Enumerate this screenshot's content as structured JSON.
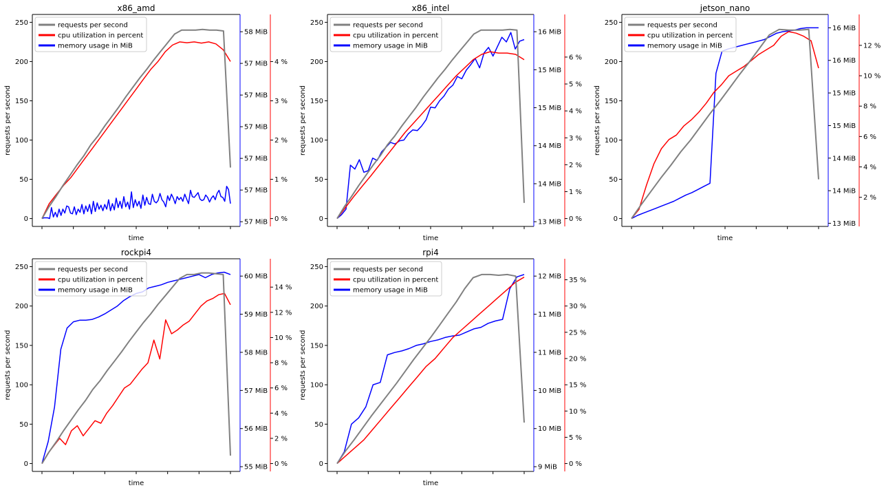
{
  "colors": {
    "requests": "#808080",
    "cpu": "#ff0000",
    "memory": "#0000ff"
  },
  "chart_data": [
    {
      "type": "line",
      "title": "x86_amd",
      "xlabel": "time",
      "ylabel": "requests per second",
      "ylim": [
        -10,
        260
      ],
      "yticks": [
        "0",
        "50",
        "100",
        "150",
        "200",
        "250"
      ],
      "mem_ticks": [
        "57 MiB",
        "57 MiB",
        "57 MiB",
        "57 MiB",
        "57 MiB",
        "57 MiB",
        "58 MiB"
      ],
      "cpu_ticks": [
        "0 %",
        "1 %",
        "2 %",
        "3 %",
        "4 %"
      ],
      "cpu_max": 4.8,
      "legend": [
        "requests per second",
        "cpu utilization in percent",
        "memory usage in MiB"
      ],
      "series": [
        {
          "name": "requests per second",
          "values": [
            0,
            15,
            28,
            42,
            55,
            68,
            80,
            94,
            105,
            118,
            130,
            142,
            155,
            167,
            179,
            190,
            202,
            213,
            224,
            235,
            240,
            240,
            240,
            241,
            240,
            240,
            239,
            65
          ]
        },
        {
          "name": "cpu utilization in percent",
          "values": [
            0,
            0.38,
            0.62,
            0.85,
            1.05,
            1.3,
            1.55,
            1.8,
            2.05,
            2.3,
            2.55,
            2.8,
            3.05,
            3.3,
            3.55,
            3.8,
            4.0,
            4.25,
            4.42,
            4.5,
            4.48,
            4.5,
            4.47,
            4.5,
            4.45,
            4.3,
            4.0
          ]
        },
        {
          "name": "memory usage in MiB",
          "values": [
            0,
            1,
            1,
            1,
            0,
            14,
            2,
            8,
            2,
            12,
            4,
            12,
            7,
            16,
            15,
            7,
            6,
            15,
            5,
            12,
            8,
            18,
            6,
            16,
            9,
            18,
            6,
            22,
            9,
            20,
            12,
            17,
            10,
            18,
            12,
            24,
            10,
            19,
            11,
            26,
            14,
            22,
            13,
            28,
            15,
            21,
            12,
            34,
            14,
            24,
            16,
            22,
            13,
            30,
            17,
            27,
            19,
            18,
            31,
            22,
            20,
            23,
            32,
            24,
            21,
            15,
            29,
            23,
            31,
            26,
            19,
            28,
            24,
            27,
            22,
            31,
            25,
            19,
            36,
            28,
            27,
            30,
            33,
            25,
            23,
            24,
            30,
            27,
            21,
            26,
            29,
            24,
            32,
            36,
            28,
            27,
            22,
            41,
            37,
            19
          ]
        }
      ]
    },
    {
      "type": "line",
      "title": "x86_intel",
      "xlabel": "time",
      "ylabel": "requests per second",
      "ylim": [
        -10,
        260
      ],
      "yticks": [
        "0",
        "50",
        "100",
        "150",
        "200",
        "250"
      ],
      "mem_ticks": [
        "13 MiB",
        "14 MiB",
        "14 MiB",
        "15 MiB",
        "15 MiB",
        "16 MiB"
      ],
      "cpu_ticks": [
        "0 %",
        "1 %",
        "2 %",
        "3 %",
        "4 %",
        "5 %",
        "6 %"
      ],
      "cpu_max": 7.0,
      "legend": [
        "requests per second",
        "cpu utilization in percent",
        "memory usage in MiB"
      ],
      "series": [
        {
          "name": "requests per second",
          "values": [
            0,
            15,
            28,
            42,
            55,
            68,
            80,
            94,
            105,
            118,
            130,
            142,
            155,
            167,
            179,
            190,
            202,
            213,
            224,
            235,
            240,
            240,
            240,
            240,
            241,
            240,
            20
          ]
        },
        {
          "name": "cpu utilization in percent",
          "values": [
            0,
            0.42,
            0.83,
            1.22,
            1.6,
            2.0,
            2.4,
            2.8,
            3.2,
            3.55,
            3.9,
            4.25,
            4.6,
            4.95,
            5.3,
            5.6,
            5.9,
            6.1,
            6.2,
            6.15,
            6.15,
            6.1,
            5.9
          ]
        },
        {
          "name": "memory usage in MiB",
          "values": [
            0,
            5,
            12,
            68,
            63,
            75,
            59,
            61,
            77,
            74,
            85,
            91,
            97,
            95,
            99,
            100,
            108,
            113,
            112,
            118,
            126,
            142,
            141,
            150,
            156,
            165,
            170,
            181,
            178,
            189,
            196,
            204,
            192,
            211,
            218,
            207,
            219,
            231,
            225,
            237,
            216,
            226,
            228
          ]
        }
      ]
    },
    {
      "type": "line",
      "title": "jetson_nano",
      "xlabel": "time",
      "ylabel": "requests per second",
      "ylim": [
        -10,
        260
      ],
      "yticks": [
        "0",
        "50",
        "100",
        "150",
        "200",
        "250"
      ],
      "mem_ticks": [
        "13 MiB",
        "14 MiB",
        "14 MiB",
        "15 MiB",
        "15 MiB",
        "16 MiB",
        "16 MiB"
      ],
      "cpu_ticks": [
        "2 %",
        "4 %",
        "6 %",
        "8 %",
        "10 %",
        "12 %"
      ],
      "cpu_min": 0.6,
      "cpu_max": 13.0,
      "legend": [
        "requests per second",
        "cpu utilization in percent",
        "memory usage in MiB"
      ],
      "series": [
        {
          "name": "requests per second",
          "values": [
            0,
            18,
            35,
            52,
            68,
            85,
            100,
            117,
            134,
            150,
            167,
            184,
            200,
            217,
            234,
            241,
            240,
            240,
            241,
            50
          ]
        },
        {
          "name": "cpu utilization in percent",
          "values": [
            0.6,
            1.2,
            2.8,
            4.2,
            5.2,
            5.8,
            6.1,
            6.7,
            7.1,
            7.6,
            8.2,
            8.9,
            9.4,
            10.0,
            10.3,
            10.6,
            11.0,
            11.4,
            11.7,
            12.0,
            12.6,
            12.9,
            12.8,
            12.6,
            12.3,
            10.5
          ]
        },
        {
          "name": "memory usage in MiB",
          "values": [
            0,
            4,
            7,
            10,
            13,
            16,
            19,
            22,
            26,
            30,
            33,
            37,
            41,
            45,
            185,
            213,
            216,
            218,
            220,
            222,
            224,
            226,
            228,
            232,
            236,
            238,
            239,
            240,
            242,
            243,
            243,
            243
          ]
        }
      ]
    },
    {
      "type": "line",
      "title": "rockpi4",
      "xlabel": "time",
      "ylabel": "requests per second",
      "ylim": [
        -10,
        260
      ],
      "yticks": [
        "0",
        "50",
        "100",
        "150",
        "200",
        "250"
      ],
      "mem_ticks": [
        "55 MiB",
        "56 MiB",
        "57 MiB",
        "58 MiB",
        "59 MiB",
        "60 MiB"
      ],
      "cpu_ticks": [
        "0 %",
        "2 %",
        "4 %",
        "6 %",
        "8 %",
        "10 %",
        "12 %",
        "14 %"
      ],
      "cpu_max": 15.0,
      "legend": [
        "requests per second",
        "cpu utilization in percent",
        "memory usage in MiB"
      ],
      "series": [
        {
          "name": "requests per second",
          "values": [
            0,
            15,
            28,
            42,
            55,
            68,
            80,
            94,
            105,
            118,
            130,
            142,
            155,
            167,
            179,
            190,
            202,
            213,
            224,
            235,
            240,
            240,
            242,
            242,
            241,
            240,
            10
          ]
        },
        {
          "name": "cpu utilization in percent",
          "values": [
            0,
            0.8,
            1.4,
            2.0,
            1.5,
            2.6,
            3.0,
            2.2,
            2.8,
            3.4,
            3.2,
            4.0,
            4.6,
            5.3,
            6.0,
            6.3,
            6.9,
            7.5,
            8.0,
            9.8,
            8.3,
            11.4,
            10.3,
            10.6,
            11.0,
            11.3,
            11.9,
            12.5,
            12.9,
            13.1,
            13.4,
            13.5,
            12.6
          ]
        },
        {
          "name": "memory usage in MiB",
          "values": [
            0,
            28,
            72,
            145,
            172,
            180,
            182,
            182,
            183,
            186,
            190,
            195,
            200,
            207,
            212,
            216,
            218,
            223,
            225,
            227,
            230,
            232,
            234,
            236,
            238,
            240,
            236,
            240,
            242,
            243,
            240
          ]
        }
      ]
    },
    {
      "type": "line",
      "title": "rpi4",
      "xlabel": "time",
      "ylabel": "requests per second",
      "ylim": [
        -10,
        260
      ],
      "yticks": [
        "0",
        "50",
        "100",
        "150",
        "200",
        "250"
      ],
      "mem_ticks": [
        "9 MiB",
        "10 MiB",
        "10 MiB",
        "11 MiB",
        "11 MiB",
        "12 MiB"
      ],
      "cpu_ticks": [
        "0 %",
        "5 %",
        "10 %",
        "15 %",
        "20 %",
        "25 %",
        "30 %",
        "35 %"
      ],
      "cpu_max": 36.0,
      "legend": [
        "requests per second",
        "cpu utilization in percent",
        "memory usage in MiB"
      ],
      "series": [
        {
          "name": "requests per second",
          "values": [
            0,
            16,
            30,
            45,
            60,
            74,
            88,
            102,
            117,
            132,
            146,
            160,
            175,
            190,
            205,
            222,
            236,
            240,
            240,
            239,
            240,
            238,
            52
          ]
        },
        {
          "name": "cpu utilization in percent",
          "values": [
            0,
            1.5,
            3,
            4.5,
            6.5,
            8.5,
            10.5,
            12.5,
            14.5,
            16.5,
            18.5,
            20,
            22,
            24,
            25.5,
            27,
            28.5,
            30,
            31.5,
            33,
            34.5,
            35.5
          ]
        },
        {
          "name": "memory usage in MiB",
          "values": [
            0,
            15,
            50,
            58,
            72,
            100,
            103,
            138,
            141,
            143,
            146,
            150,
            152,
            155,
            157,
            160,
            162,
            163,
            167,
            171,
            173,
            178,
            181,
            183,
            222,
            237,
            240
          ]
        }
      ]
    }
  ]
}
